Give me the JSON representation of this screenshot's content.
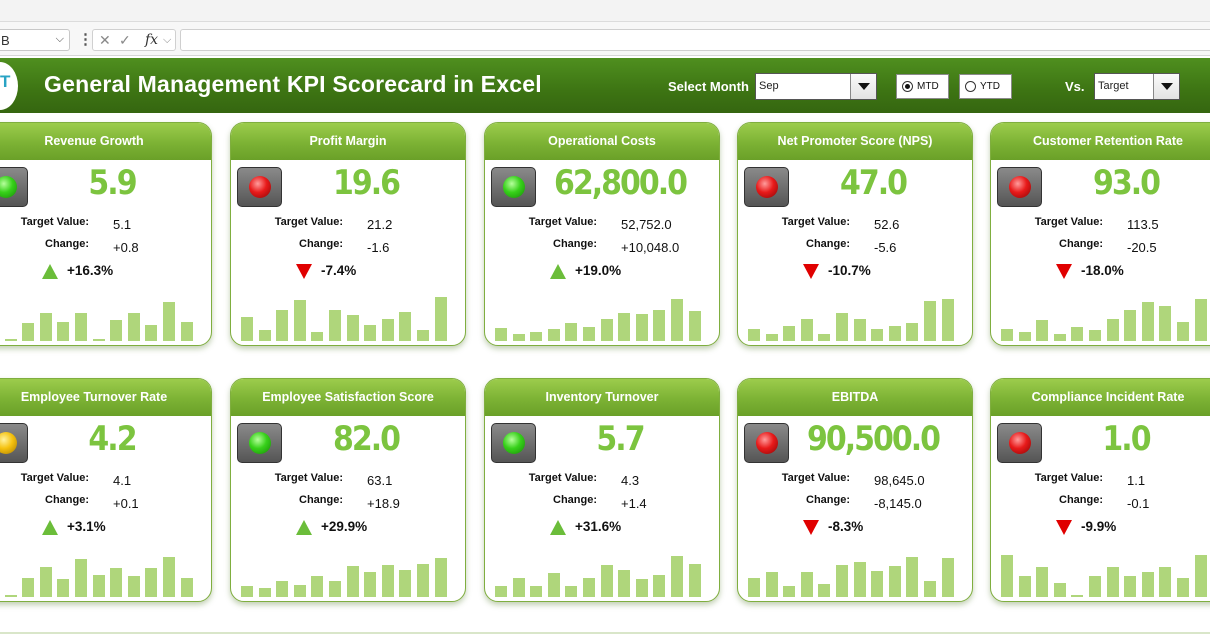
{
  "formula_bar": {
    "name_box": "B",
    "fx": "fx",
    "cancel_icon": "x-icon",
    "enter_icon": "check-icon",
    "formula": ""
  },
  "header": {
    "logo_text": "T",
    "title": "General Management KPI Scorecard in Excel",
    "month_label": "Select Month",
    "month_value": "Sep",
    "mtd_label": "MTD",
    "ytd_label": "YTD",
    "period_selected": "MTD",
    "vs_label": "Vs.",
    "vs_value": "Target"
  },
  "colors": {
    "accent": "#4f8f1f",
    "card_header": "#7cb234",
    "value_green": "#7cc43f",
    "bar_fill": "#afd67b",
    "up_arrow": "#6bbd3a",
    "down_arrow": "#e00000"
  },
  "labels": {
    "target": "Target Value:",
    "change": "Change:"
  },
  "kpis": [
    {
      "title": "Revenue Growth",
      "value": "5.9",
      "target": "5.1",
      "change": "+0.8",
      "pct": "+16.3%",
      "direction": "up",
      "status": "green",
      "trend": [
        33,
        0,
        20,
        32,
        22,
        32,
        0,
        24,
        32,
        18,
        44,
        22
      ]
    },
    {
      "title": "Profit Margin",
      "value": "19.6",
      "target": "21.2",
      "change": "-1.6",
      "pct": "-7.4%",
      "direction": "down",
      "status": "red",
      "trend": [
        27,
        12,
        35,
        47,
        10,
        35,
        30,
        18,
        25,
        33,
        13,
        50
      ]
    },
    {
      "title": "Operational Costs",
      "value": "62,800.0",
      "target": "52,752.0",
      "change": "+10,048.0",
      "pct": "+19.0%",
      "direction": "up",
      "status": "green",
      "trend": [
        15,
        8,
        10,
        14,
        20,
        16,
        25,
        32,
        31,
        35,
        48,
        34
      ]
    },
    {
      "title": "Net Promoter Score (NPS)",
      "value": "47.0",
      "target": "52.6",
      "change": "-5.6",
      "pct": "-10.7%",
      "direction": "down",
      "status": "red",
      "trend": [
        14,
        8,
        17,
        25,
        8,
        32,
        25,
        14,
        17,
        20,
        45,
        48
      ]
    },
    {
      "title": "Customer Retention Rate",
      "value": "93.0",
      "target": "113.5",
      "change": "-20.5",
      "pct": "-18.0%",
      "direction": "down",
      "status": "red",
      "trend": [
        14,
        10,
        24,
        8,
        16,
        12,
        25,
        35,
        44,
        40,
        22,
        48
      ]
    },
    {
      "title": "Employee Turnover Rate",
      "value": "4.2",
      "target": "4.1",
      "change": "+0.1",
      "pct": "+3.1%",
      "direction": "up",
      "status": "amber",
      "trend": [
        38,
        0,
        22,
        34,
        20,
        43,
        25,
        33,
        24,
        33,
        45,
        22
      ]
    },
    {
      "title": "Employee Satisfaction Score",
      "value": "82.0",
      "target": "63.1",
      "change": "+18.9",
      "pct": "+29.9%",
      "direction": "up",
      "status": "green",
      "trend": [
        12,
        10,
        18,
        14,
        24,
        18,
        35,
        28,
        36,
        31,
        38,
        44
      ]
    },
    {
      "title": "Inventory Turnover",
      "value": "5.7",
      "target": "4.3",
      "change": "+1.4",
      "pct": "+31.6%",
      "direction": "up",
      "status": "green",
      "trend": [
        13,
        22,
        12,
        27,
        12,
        22,
        36,
        31,
        21,
        25,
        47,
        37
      ]
    },
    {
      "title": "EBITDA",
      "value": "90,500.0",
      "target": "98,645.0",
      "change": "-8,145.0",
      "pct": "-8.3%",
      "direction": "down",
      "status": "red",
      "trend": [
        22,
        28,
        13,
        28,
        15,
        36,
        40,
        30,
        35,
        45,
        18,
        44
      ]
    },
    {
      "title": "Compliance Incident Rate",
      "value": "1.0",
      "target": "1.1",
      "change": "-0.1",
      "pct": "-9.9%",
      "direction": "down",
      "status": "red",
      "trend": [
        48,
        24,
        34,
        16,
        0,
        24,
        34,
        24,
        28,
        34,
        22,
        48
      ]
    }
  ]
}
